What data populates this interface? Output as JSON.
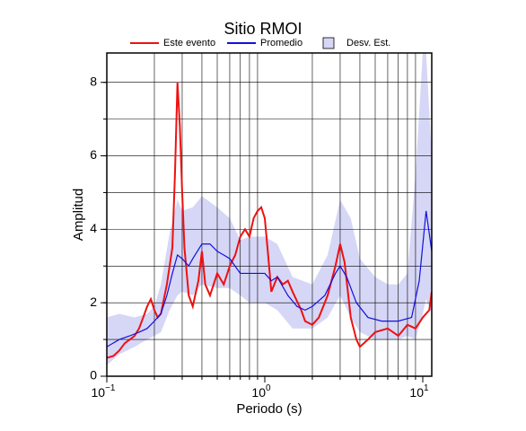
{
  "chart_data": {
    "type": "line",
    "title": "Sitio RMOI",
    "xlabel": "Periodo (s)",
    "ylabel": "Amplitud",
    "xscale": "log",
    "xlim": [
      0.1,
      11.4
    ],
    "ylim": [
      0,
      8.8
    ],
    "xticks": [
      {
        "value": 0.1,
        "label": "10",
        "exponent": "−1"
      },
      {
        "value": 1,
        "label": "10",
        "exponent": "0"
      },
      {
        "value": 10,
        "label": "10",
        "exponent": "1"
      }
    ],
    "xgrid": [
      0.2,
      0.3,
      0.4,
      0.5,
      0.6,
      0.7,
      0.8,
      0.9,
      2,
      3,
      4,
      5,
      6,
      7,
      8,
      9
    ],
    "yticks": [
      0,
      2,
      4,
      6,
      8
    ],
    "ygrid": [
      1,
      2,
      3,
      4,
      5,
      6,
      7,
      8
    ],
    "grid": true,
    "band": {
      "name": "Desv. Est.",
      "color": "#d6d6f6",
      "edge": "#000000",
      "x": [
        0.1,
        0.12,
        0.15,
        0.18,
        0.2,
        0.22,
        0.25,
        0.28,
        0.3,
        0.35,
        0.4,
        0.5,
        0.6,
        0.7,
        0.8,
        1.0,
        1.2,
        1.5,
        2,
        2.5,
        3,
        3.5,
        4,
        5,
        6,
        7,
        8,
        9,
        10,
        10.5,
        11.4
      ],
      "upper": [
        1.6,
        1.7,
        1.6,
        1.7,
        1.9,
        2.5,
        3.9,
        4.8,
        4.5,
        4.6,
        4.9,
        4.6,
        4.3,
        3.7,
        3.8,
        3.8,
        3.6,
        2.7,
        2.5,
        3.3,
        4.8,
        4.3,
        3.2,
        2.7,
        2.5,
        2.5,
        2.8,
        5.5,
        8.8,
        8.8,
        6.0
      ],
      "lower": [
        0.3,
        0.6,
        0.8,
        1.0,
        1.1,
        1.2,
        1.8,
        2.2,
        2.3,
        2.2,
        2.5,
        2.4,
        2.4,
        2.2,
        2.0,
        2.0,
        1.8,
        1.3,
        1.3,
        1.6,
        2.2,
        1.6,
        1.2,
        1.0,
        1.0,
        1.0,
        1.1,
        1.0,
        1.7,
        2.1,
        1.7
      ]
    },
    "series": [
      {
        "name": "Este evento",
        "color": "#ee1111",
        "x": [
          0.1,
          0.11,
          0.12,
          0.13,
          0.14,
          0.15,
          0.16,
          0.17,
          0.18,
          0.19,
          0.2,
          0.21,
          0.22,
          0.24,
          0.26,
          0.27,
          0.28,
          0.29,
          0.3,
          0.31,
          0.33,
          0.35,
          0.38,
          0.4,
          0.42,
          0.45,
          0.5,
          0.55,
          0.6,
          0.65,
          0.7,
          0.75,
          0.8,
          0.85,
          0.9,
          0.95,
          1.0,
          1.05,
          1.1,
          1.2,
          1.3,
          1.4,
          1.5,
          1.7,
          1.8,
          2.0,
          2.2,
          2.5,
          2.8,
          3.0,
          3.2,
          3.5,
          3.8,
          4.0,
          4.5,
          5.0,
          6.0,
          7.0,
          8.0,
          9.0,
          10,
          11,
          11.4
        ],
        "values": [
          0.5,
          0.55,
          0.7,
          0.9,
          1.0,
          1.1,
          1.3,
          1.6,
          1.9,
          2.1,
          1.8,
          1.6,
          1.7,
          2.5,
          3.5,
          5.5,
          8.0,
          6.8,
          5.0,
          3.5,
          2.2,
          1.9,
          2.6,
          3.4,
          2.5,
          2.2,
          2.8,
          2.5,
          3.0,
          3.3,
          3.8,
          4.0,
          3.8,
          4.3,
          4.5,
          4.6,
          4.3,
          3.3,
          2.3,
          2.7,
          2.5,
          2.6,
          2.3,
          1.8,
          1.5,
          1.4,
          1.6,
          2.2,
          3.0,
          3.6,
          3.1,
          1.6,
          1.0,
          0.8,
          1.0,
          1.2,
          1.3,
          1.1,
          1.4,
          1.3,
          1.6,
          1.8,
          2.3
        ]
      },
      {
        "name": "Promedio",
        "color": "#1111dd",
        "x": [
          0.1,
          0.12,
          0.14,
          0.16,
          0.18,
          0.2,
          0.22,
          0.24,
          0.26,
          0.28,
          0.3,
          0.33,
          0.35,
          0.4,
          0.45,
          0.5,
          0.55,
          0.6,
          0.7,
          0.8,
          0.9,
          1.0,
          1.1,
          1.2,
          1.4,
          1.6,
          1.8,
          2.0,
          2.4,
          2.8,
          3.0,
          3.3,
          3.8,
          4.5,
          5.5,
          7,
          8.5,
          9.5,
          10.5,
          11.4
        ],
        "values": [
          0.8,
          1.0,
          1.1,
          1.2,
          1.3,
          1.5,
          1.7,
          2.2,
          2.8,
          3.3,
          3.2,
          3.0,
          3.2,
          3.6,
          3.6,
          3.4,
          3.3,
          3.2,
          2.8,
          2.8,
          2.8,
          2.8,
          2.6,
          2.7,
          2.2,
          1.9,
          1.8,
          1.9,
          2.2,
          2.8,
          3.0,
          2.7,
          2.0,
          1.6,
          1.5,
          1.5,
          1.6,
          2.6,
          4.5,
          3.4
        ]
      }
    ]
  }
}
